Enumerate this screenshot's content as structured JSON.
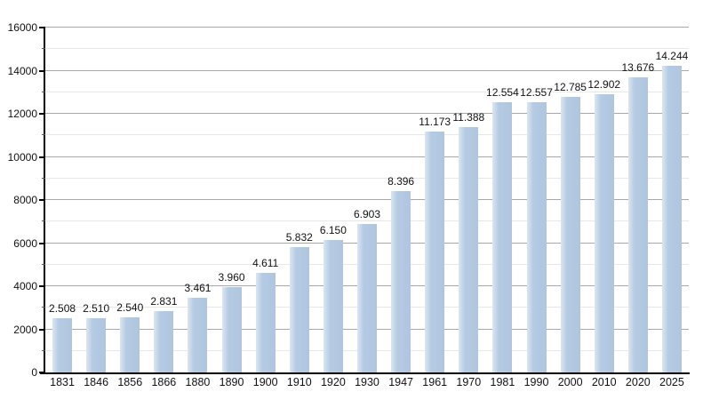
{
  "chart_data": {
    "type": "bar",
    "title": "",
    "xlabel": "",
    "ylabel": "",
    "categories": [
      "1831",
      "1846",
      "1856",
      "1866",
      "1880",
      "1890",
      "1900",
      "1910",
      "1920",
      "1930",
      "1947",
      "1961",
      "1970",
      "1981",
      "1990",
      "2000",
      "2010",
      "2020",
      "2025"
    ],
    "values": [
      2508,
      2510,
      2540,
      2831,
      3461,
      3960,
      4611,
      5832,
      6150,
      6903,
      8396,
      11173,
      11388,
      12554,
      12557,
      12785,
      12902,
      13676,
      14244
    ],
    "bar_labels": [
      "2.508",
      "2.510",
      "2.540",
      "2.831",
      "3.461",
      "3.960",
      "4.611",
      "5.832",
      "6.150",
      "6.903",
      "8.396",
      "11.173",
      "11.388",
      "12.554",
      "12.557",
      "12.785",
      "12.902",
      "13.676",
      "14.244"
    ],
    "ylim": [
      0,
      16000
    ],
    "y_major_step": 2000,
    "y_minor_step": 1000,
    "y_tick_labels": [
      "0",
      "2000",
      "4000",
      "6000",
      "8000",
      "10000",
      "12000",
      "14000",
      "16000"
    ],
    "grid": true,
    "legend": "none",
    "colors": {
      "bar_main": "#b5cbe3",
      "bar_highlight": "#dbe6f2",
      "bar_edge": "#b0c6e0",
      "major_grid": "#a8a8a8",
      "minor_grid": "#e8e8e8",
      "axis": "#000000",
      "label_text": "#111111"
    }
  }
}
